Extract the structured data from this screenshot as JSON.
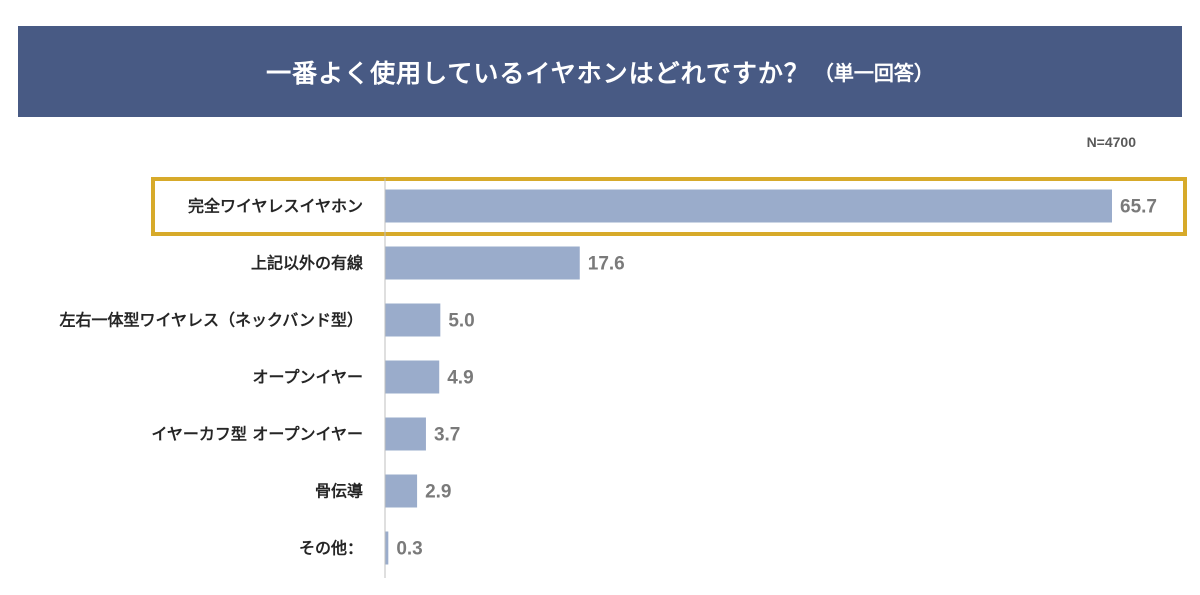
{
  "title": {
    "main": "一番よく使用しているイヤホンはどれですか？",
    "sub": "（単一回答）"
  },
  "sample_size": "N=4700",
  "colors": {
    "bar": "#9aaccb",
    "highlight_border": "#d7aa2a",
    "title_bg": "#485a84",
    "axis": "#bfbfbf"
  },
  "chart_data": {
    "type": "bar",
    "orientation": "horizontal",
    "categories": [
      "完全ワイヤレスイヤホン",
      "上記以外の有線",
      "左右一体型ワイヤレス（ネックバンド型）",
      "オープンイヤー",
      "イヤーカフ型 オープンイヤー",
      "骨伝導",
      "その他："
    ],
    "values": [
      65.7,
      17.6,
      5.0,
      4.9,
      3.7,
      2.9,
      0.3
    ],
    "value_labels": [
      "65.7",
      "17.6",
      "5.0",
      "4.9",
      "3.7",
      "2.9",
      "0.3"
    ],
    "highlighted_category": "完全ワイヤレスイヤホン",
    "xlim": [
      0,
      65.7
    ],
    "grid": false
  }
}
